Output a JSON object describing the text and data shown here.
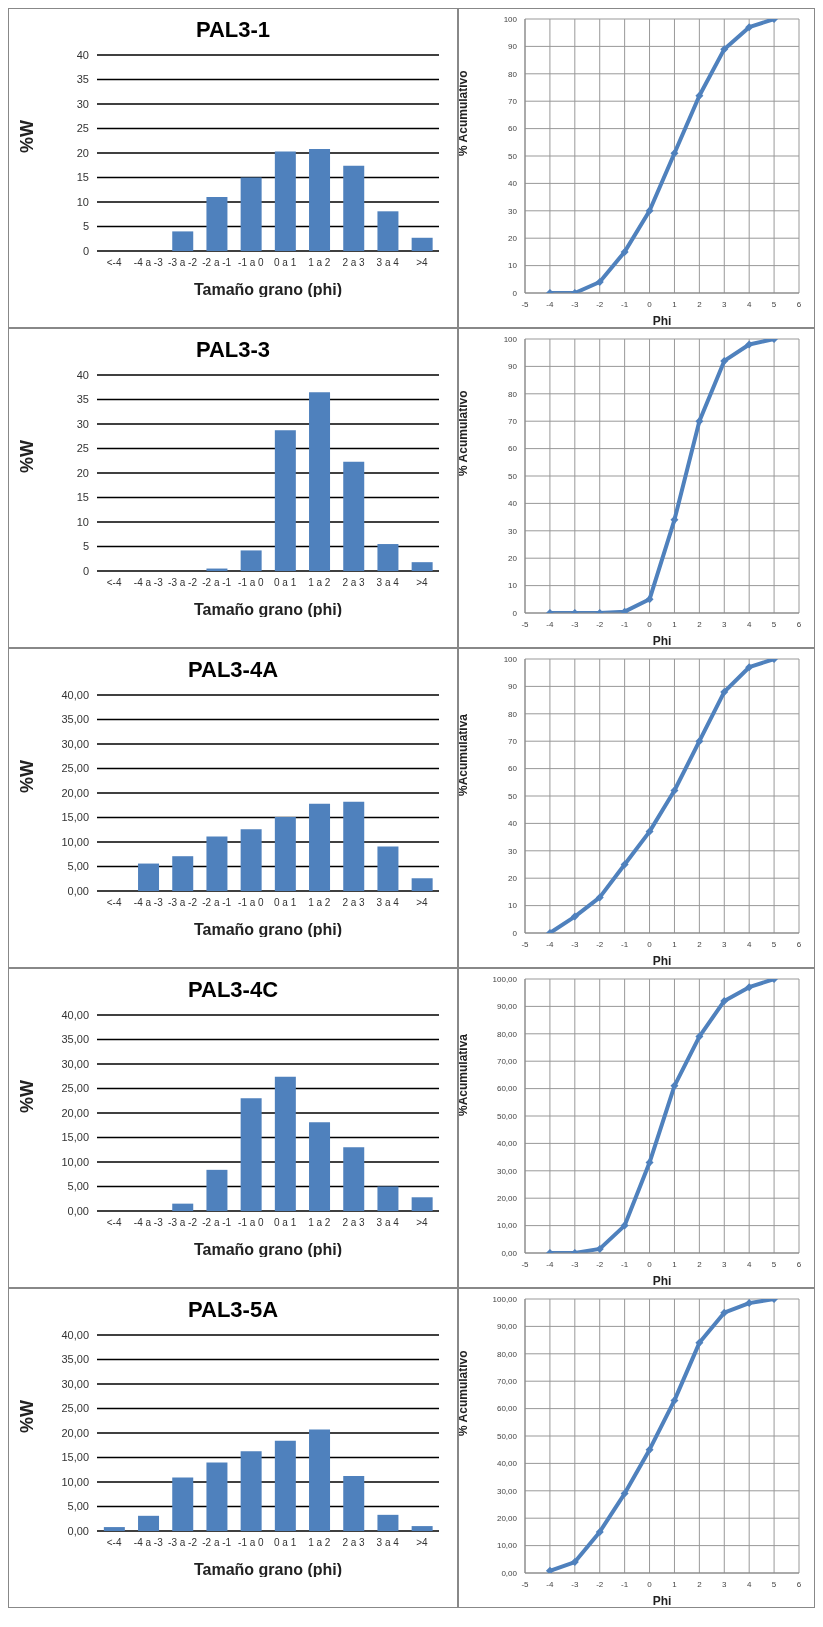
{
  "chart_data": [
    {
      "type": "bar",
      "title": "PAL3-1",
      "xlabel": "Tamaño grano (phi)",
      "ylabel": "%W",
      "categories": [
        "<-4",
        "-4 a -3",
        "-3 a -2",
        "-2 a -1",
        "-1 a 0",
        "0 a 1",
        "1 a 2",
        "2 a 3",
        "3 a 4",
        ">4"
      ],
      "values": [
        0,
        0,
        4,
        11,
        15,
        20.3,
        20.8,
        17.4,
        8.1,
        2.7
      ],
      "color": "#4f81bd",
      "ylim": [
        0,
        40
      ],
      "yticks": [
        0,
        5,
        10,
        15,
        20,
        25,
        30,
        35,
        40
      ],
      "grid": "y"
    },
    {
      "type": "line",
      "xlabel": "Phi",
      "ylabel": "% Acumulativo",
      "x": [
        -4,
        -3,
        -2,
        -1,
        0,
        1,
        2,
        3,
        4,
        5
      ],
      "values": [
        0,
        0,
        4,
        15,
        30,
        51,
        72,
        89,
        97,
        100
      ],
      "color": "#4f81bd",
      "xlim": [
        -5,
        6
      ],
      "xticks": [
        -5,
        -4,
        -3,
        -2,
        -1,
        0,
        1,
        2,
        3,
        4,
        5,
        6
      ],
      "ylim": [
        0,
        100
      ],
      "yticks": [
        0,
        10,
        20,
        30,
        40,
        50,
        60,
        70,
        80,
        90,
        100
      ],
      "grid": true,
      "marker": "diamond",
      "line_style": "solid"
    },
    {
      "type": "bar",
      "title": "PAL3-3",
      "xlabel": "Tamaño grano (phi)",
      "ylabel": "%W",
      "categories": [
        "<-4",
        "-4 a -3",
        "-3 a -2",
        "-2 a -1",
        "-1 a 0",
        "0 a 1",
        "1 a 2",
        "2 a 3",
        "3 a 4",
        ">4"
      ],
      "values": [
        0,
        0,
        0,
        0.5,
        4.2,
        28.7,
        36.5,
        22.3,
        5.5,
        1.8
      ],
      "color": "#4f81bd",
      "ylim": [
        0,
        40
      ],
      "yticks": [
        0,
        5,
        10,
        15,
        20,
        25,
        30,
        35,
        40
      ],
      "grid": "y"
    },
    {
      "type": "line",
      "xlabel": "Phi",
      "ylabel": "% Acumulativo",
      "x": [
        -4,
        -3,
        -2,
        -1,
        0,
        1,
        2,
        3,
        4,
        5
      ],
      "values": [
        0,
        0,
        0,
        0.5,
        5,
        34,
        70,
        92,
        98,
        100
      ],
      "color": "#4f81bd",
      "xlim": [
        -5,
        6
      ],
      "xticks": [
        -5,
        -4,
        -3,
        -2,
        -1,
        0,
        1,
        2,
        3,
        4,
        5,
        6
      ],
      "ylim": [
        0,
        100
      ],
      "yticks": [
        0,
        10,
        20,
        30,
        40,
        50,
        60,
        70,
        80,
        90,
        100
      ],
      "grid": true,
      "marker": "diamond",
      "line_style": "solid"
    },
    {
      "type": "bar",
      "title": "PAL3-4A",
      "xlabel": "Tamaño grano (phi)",
      "ylabel": "%W",
      "categories": [
        "<-4",
        "-4 a -3",
        "-3 a -2",
        "-2 a -1",
        "-1 a 0",
        "0 a 1",
        "1 a 2",
        "2 a 3",
        "3 a 4",
        ">4"
      ],
      "values": [
        0,
        5.6,
        7.1,
        11.1,
        12.6,
        15.1,
        17.8,
        18.2,
        9.1,
        2.6
      ],
      "color": "#4f81bd",
      "ylim": [
        0,
        40
      ],
      "yticks": [
        {
          "value": 0,
          "label": "0,00"
        },
        {
          "value": 5,
          "label": "5,00"
        },
        {
          "value": 10,
          "label": "10,00"
        },
        {
          "value": 15,
          "label": "15,00"
        },
        {
          "value": 20,
          "label": "20,00"
        },
        {
          "value": 25,
          "label": "25,00"
        },
        {
          "value": 30,
          "label": "30,00"
        },
        {
          "value": 35,
          "label": "35,00"
        },
        {
          "value": 40,
          "label": "40,00"
        }
      ],
      "grid": "y"
    },
    {
      "type": "line",
      "xlabel": "Phi",
      "ylabel": "%Acumulativa",
      "x": [
        -4,
        -3,
        -2,
        -1,
        0,
        1,
        2,
        3,
        4,
        5
      ],
      "values": [
        0,
        6,
        13,
        25,
        37,
        52,
        70,
        88,
        97,
        100
      ],
      "color": "#4f81bd",
      "xlim": [
        -5,
        6
      ],
      "xticks": [
        -5,
        -4,
        -3,
        -2,
        -1,
        0,
        1,
        2,
        3,
        4,
        5,
        6
      ],
      "ylim": [
        0,
        100
      ],
      "yticks": [
        0,
        10,
        20,
        30,
        40,
        50,
        60,
        70,
        80,
        90,
        100
      ],
      "grid": true,
      "marker": "diamond",
      "line_style": "solid"
    },
    {
      "type": "bar",
      "title": "PAL3-4C",
      "xlabel": "Tamaño grano (phi)",
      "ylabel": "%W",
      "categories": [
        "<-4",
        "-4 a -3",
        "-3 a -2",
        "-2 a -1",
        "-1 a 0",
        "0 a 1",
        "1 a 2",
        "2 a 3",
        "3 a 4",
        ">4"
      ],
      "values": [
        0,
        0,
        1.5,
        8.4,
        23,
        27.4,
        18.1,
        13,
        5,
        2.8
      ],
      "color": "#4f81bd",
      "ylim": [
        0,
        40
      ],
      "yticks": [
        {
          "value": 0,
          "label": "0,00"
        },
        {
          "value": 5,
          "label": "5,00"
        },
        {
          "value": 10,
          "label": "10,00"
        },
        {
          "value": 15,
          "label": "15,00"
        },
        {
          "value": 20,
          "label": "20,00"
        },
        {
          "value": 25,
          "label": "25,00"
        },
        {
          "value": 30,
          "label": "30,00"
        },
        {
          "value": 35,
          "label": "35,00"
        },
        {
          "value": 40,
          "label": "40,00"
        }
      ],
      "grid": "y"
    },
    {
      "type": "line",
      "xlabel": "Phi",
      "ylabel": "%Acumulativa",
      "x": [
        -4,
        -3,
        -2,
        -1,
        0,
        1,
        2,
        3,
        4,
        5
      ],
      "values": [
        0,
        0,
        1.5,
        10,
        33,
        61,
        79,
        92,
        97,
        100
      ],
      "color": "#4f81bd",
      "xlim": [
        -5,
        6
      ],
      "xticks": [
        -5,
        -4,
        -3,
        -2,
        -1,
        0,
        1,
        2,
        3,
        4,
        5,
        6
      ],
      "ylim": [
        0,
        100
      ],
      "yticks": [
        {
          "value": 0,
          "label": "0,00"
        },
        {
          "value": 10,
          "label": "10,00"
        },
        {
          "value": 20,
          "label": "20,00"
        },
        {
          "value": 30,
          "label": "30,00"
        },
        {
          "value": 40,
          "label": "40,00"
        },
        {
          "value": 50,
          "label": "50,00"
        },
        {
          "value": 60,
          "label": "60,00"
        },
        {
          "value": 70,
          "label": "70,00"
        },
        {
          "value": 80,
          "label": "80,00"
        },
        {
          "value": 90,
          "label": "90,00"
        },
        {
          "value": 100,
          "label": "100,00"
        }
      ],
      "grid": true,
      "marker": "diamond",
      "line_style": "solid"
    },
    {
      "type": "bar",
      "title": "PAL3-5A",
      "xlabel": "Tamaño grano (phi)",
      "ylabel": "%W",
      "categories": [
        "<-4",
        "-4 a -3",
        "-3 a -2",
        "-2 a -1",
        "-1 a 0",
        "0 a 1",
        "1 a 2",
        "2 a 3",
        "3 a 4",
        ">4"
      ],
      "values": [
        0.8,
        3.1,
        10.9,
        14,
        16.3,
        18.4,
        20.7,
        11.2,
        3.3,
        1
      ],
      "color": "#4f81bd",
      "ylim": [
        0,
        40
      ],
      "yticks": [
        {
          "value": 0,
          "label": "0,00"
        },
        {
          "value": 5,
          "label": "5,00"
        },
        {
          "value": 10,
          "label": "10,00"
        },
        {
          "value": 15,
          "label": "15,00"
        },
        {
          "value": 20,
          "label": "20,00"
        },
        {
          "value": 25,
          "label": "25,00"
        },
        {
          "value": 30,
          "label": "30,00"
        },
        {
          "value": 35,
          "label": "35,00"
        },
        {
          "value": 40,
          "label": "40,00"
        }
      ],
      "grid": "y"
    },
    {
      "type": "line",
      "xlabel": "Phi",
      "ylabel": "% Acumulativo",
      "x": [
        -4,
        -3,
        -2,
        -1,
        0,
        1,
        2,
        3,
        4,
        5
      ],
      "values": [
        0.8,
        4,
        15,
        29,
        45,
        63,
        84,
        95,
        98.5,
        100
      ],
      "color": "#4f81bd",
      "xlim": [
        -5,
        6
      ],
      "xticks": [
        -5,
        -4,
        -3,
        -2,
        -1,
        0,
        1,
        2,
        3,
        4,
        5,
        6
      ],
      "ylim": [
        0,
        100
      ],
      "yticks": [
        {
          "value": 0,
          "label": "0,00"
        },
        {
          "value": 10,
          "label": "10,00"
        },
        {
          "value": 20,
          "label": "20,00"
        },
        {
          "value": 30,
          "label": "30,00"
        },
        {
          "value": 40,
          "label": "40,00"
        },
        {
          "value": 50,
          "label": "50,00"
        },
        {
          "value": 60,
          "label": "60,00"
        },
        {
          "value": 70,
          "label": "70,00"
        },
        {
          "value": 80,
          "label": "80,00"
        },
        {
          "value": 90,
          "label": "90,00"
        },
        {
          "value": 100,
          "label": "100,00"
        }
      ],
      "grid": true,
      "marker": "diamond",
      "line_style": "solid"
    }
  ]
}
